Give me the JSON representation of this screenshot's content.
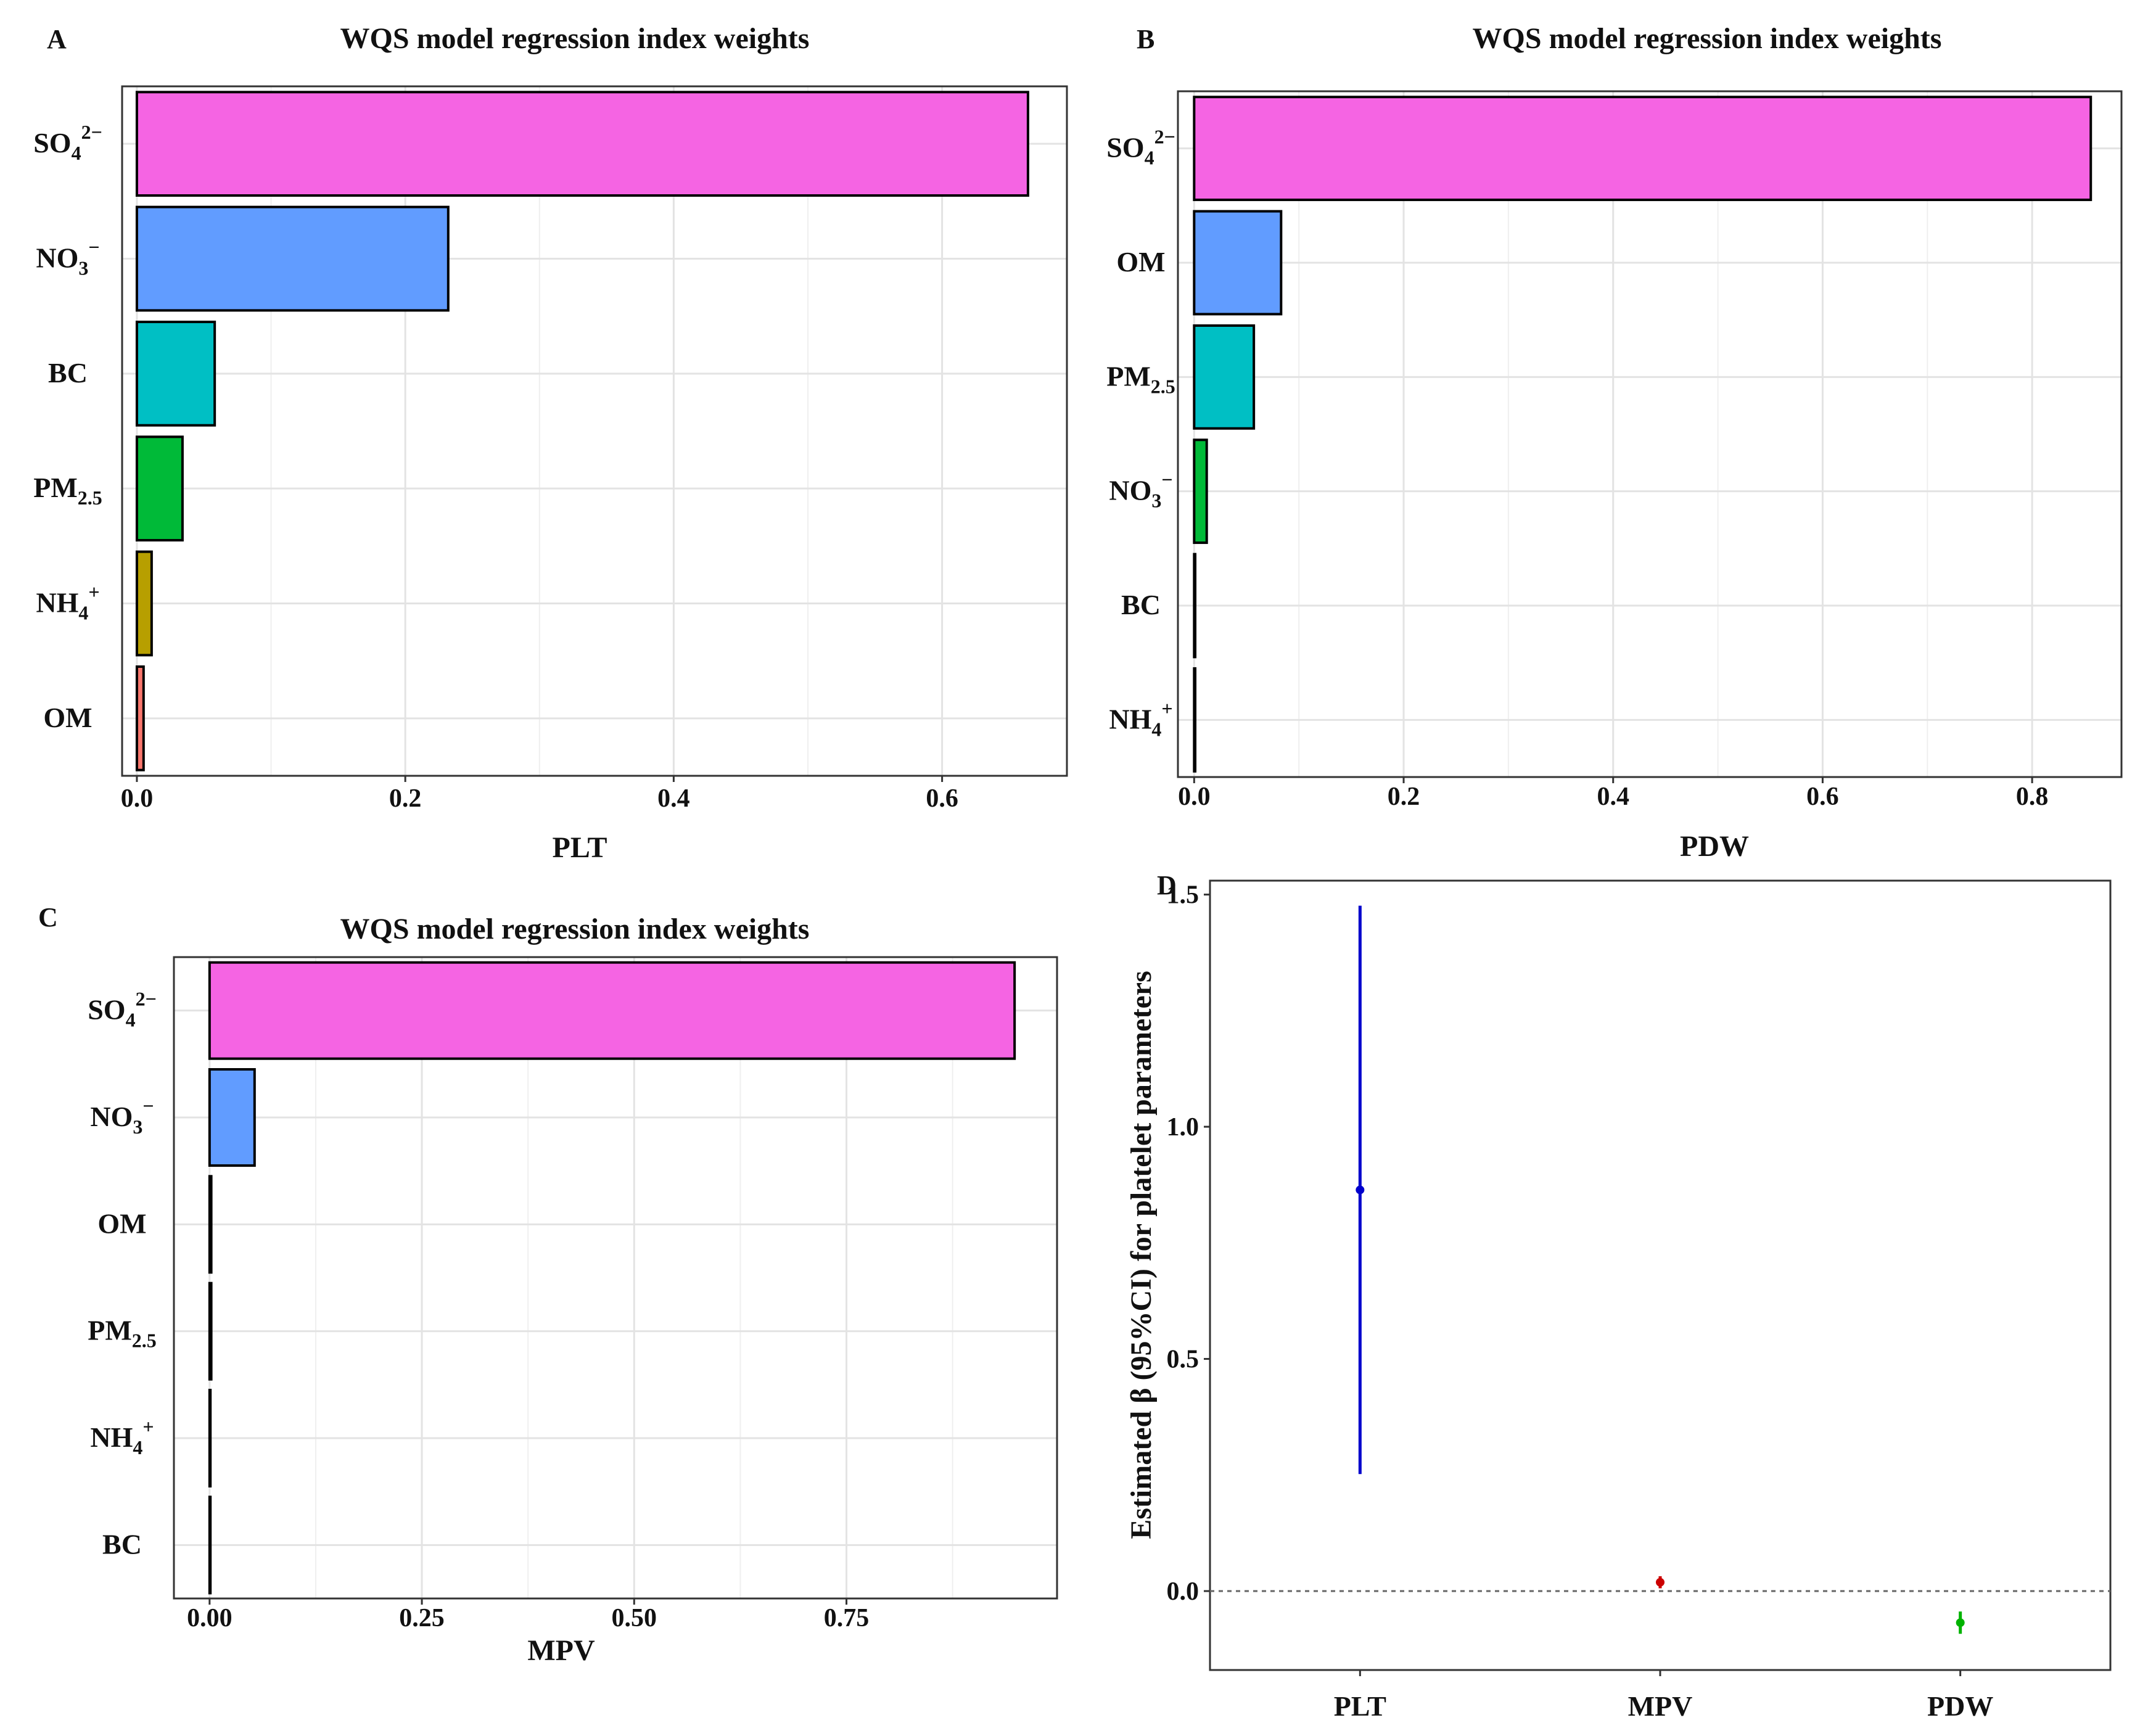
{
  "chart_data": [
    {
      "panel": "A",
      "type": "bar",
      "orientation": "horizontal",
      "title": "WQS model regression index weights",
      "xlabel": "PLT",
      "ylabel": "",
      "xlim": [
        -0.011,
        0.693
      ],
      "xticks": [
        0.0,
        0.2,
        0.4,
        0.6
      ],
      "tick_labels": [
        "0.0",
        "0.2",
        "0.4",
        "0.6"
      ],
      "categories": [
        {
          "base": "SO",
          "sub": "4",
          "sup": "2−"
        },
        {
          "base": "NO",
          "sub": "3",
          "sup": "−"
        },
        {
          "base": "BC",
          "sub": "",
          "sup": ""
        },
        {
          "base": "PM",
          "sub": "2.5",
          "sup": ""
        },
        {
          "base": "NH",
          "sub": "4",
          "sup": "+"
        },
        {
          "base": "OM",
          "sub": "",
          "sup": ""
        }
      ],
      "values": [
        0.664,
        0.232,
        0.058,
        0.034,
        0.011,
        0.005
      ],
      "colors": [
        "#f564e3",
        "#619cff",
        "#00bfc4",
        "#00ba38",
        "#b79f00",
        "#f8766d"
      ],
      "grid": true
    },
    {
      "panel": "B",
      "type": "bar",
      "orientation": "horizontal",
      "title": "WQS model regression index weights",
      "xlabel": "PDW",
      "ylabel": "",
      "xlim": [
        -0.0155,
        0.8853
      ],
      "xticks": [
        0.0,
        0.2,
        0.4,
        0.6,
        0.8
      ],
      "tick_labels": [
        "0.0",
        "0.2",
        "0.4",
        "0.6",
        "0.8"
      ],
      "categories": [
        {
          "base": "SO",
          "sub": "4",
          "sup": "2−"
        },
        {
          "base": "OM",
          "sub": "",
          "sup": ""
        },
        {
          "base": "PM",
          "sub": "2.5",
          "sup": ""
        },
        {
          "base": "NO",
          "sub": "3",
          "sup": "−"
        },
        {
          "base": "BC",
          "sub": "",
          "sup": ""
        },
        {
          "base": "NH",
          "sub": "4",
          "sup": "+"
        }
      ],
      "values": [
        0.856,
        0.083,
        0.057,
        0.012,
        0.001,
        0.001
      ],
      "colors": [
        "#f564e3",
        "#619cff",
        "#00bfc4",
        "#00ba38",
        "#b79f00",
        "#f8766d"
      ],
      "grid": true
    },
    {
      "panel": "C",
      "type": "bar",
      "orientation": "horizontal",
      "title": "WQS model regression index weights",
      "xlabel": "MPV",
      "ylabel": "",
      "xlim": [
        -0.042,
        0.998
      ],
      "xticks": [
        0.0,
        0.25,
        0.5,
        0.75
      ],
      "tick_labels": [
        "0.00",
        "0.25",
        "0.50",
        "0.75"
      ],
      "categories": [
        {
          "base": "SO",
          "sub": "4",
          "sup": "2−"
        },
        {
          "base": "NO",
          "sub": "3",
          "sup": "−"
        },
        {
          "base": "OM",
          "sub": "",
          "sup": ""
        },
        {
          "base": "PM",
          "sub": "2.5",
          "sup": ""
        },
        {
          "base": "NH",
          "sub": "4",
          "sup": "+"
        },
        {
          "base": "BC",
          "sub": "",
          "sup": ""
        }
      ],
      "values": [
        0.948,
        0.053,
        0.002,
        0.002,
        0.001,
        0.001
      ],
      "colors": [
        "#f564e3",
        "#619cff",
        "#00bfc4",
        "#00ba38",
        "#b79f00",
        "#f8766d"
      ],
      "grid": true
    },
    {
      "panel": "D",
      "type": "errorbar",
      "title": "",
      "xlabel": "",
      "ylabel": "Estimated β (95%CI) for platelet parameters",
      "ylim": [
        -0.17,
        1.53
      ],
      "yticks": [
        0.0,
        0.5,
        1.0,
        1.5
      ],
      "tick_labels": [
        "0.0",
        "0.5",
        "1.0",
        "1.5"
      ],
      "categories": [
        "PLT",
        "MPV",
        "PDW"
      ],
      "series": [
        {
          "name": "PLT",
          "estimate": 0.864,
          "lower": 0.252,
          "upper": 1.476,
          "color": "#0000cc"
        },
        {
          "name": "MPV",
          "estimate": 0.019,
          "lower": 0.006,
          "upper": 0.032,
          "color": "#cc0000"
        },
        {
          "name": "PDW",
          "estimate": -0.068,
          "lower": -0.092,
          "upper": -0.044,
          "color": "#00b300"
        }
      ],
      "reference_line": 0.0,
      "grid": false
    }
  ]
}
